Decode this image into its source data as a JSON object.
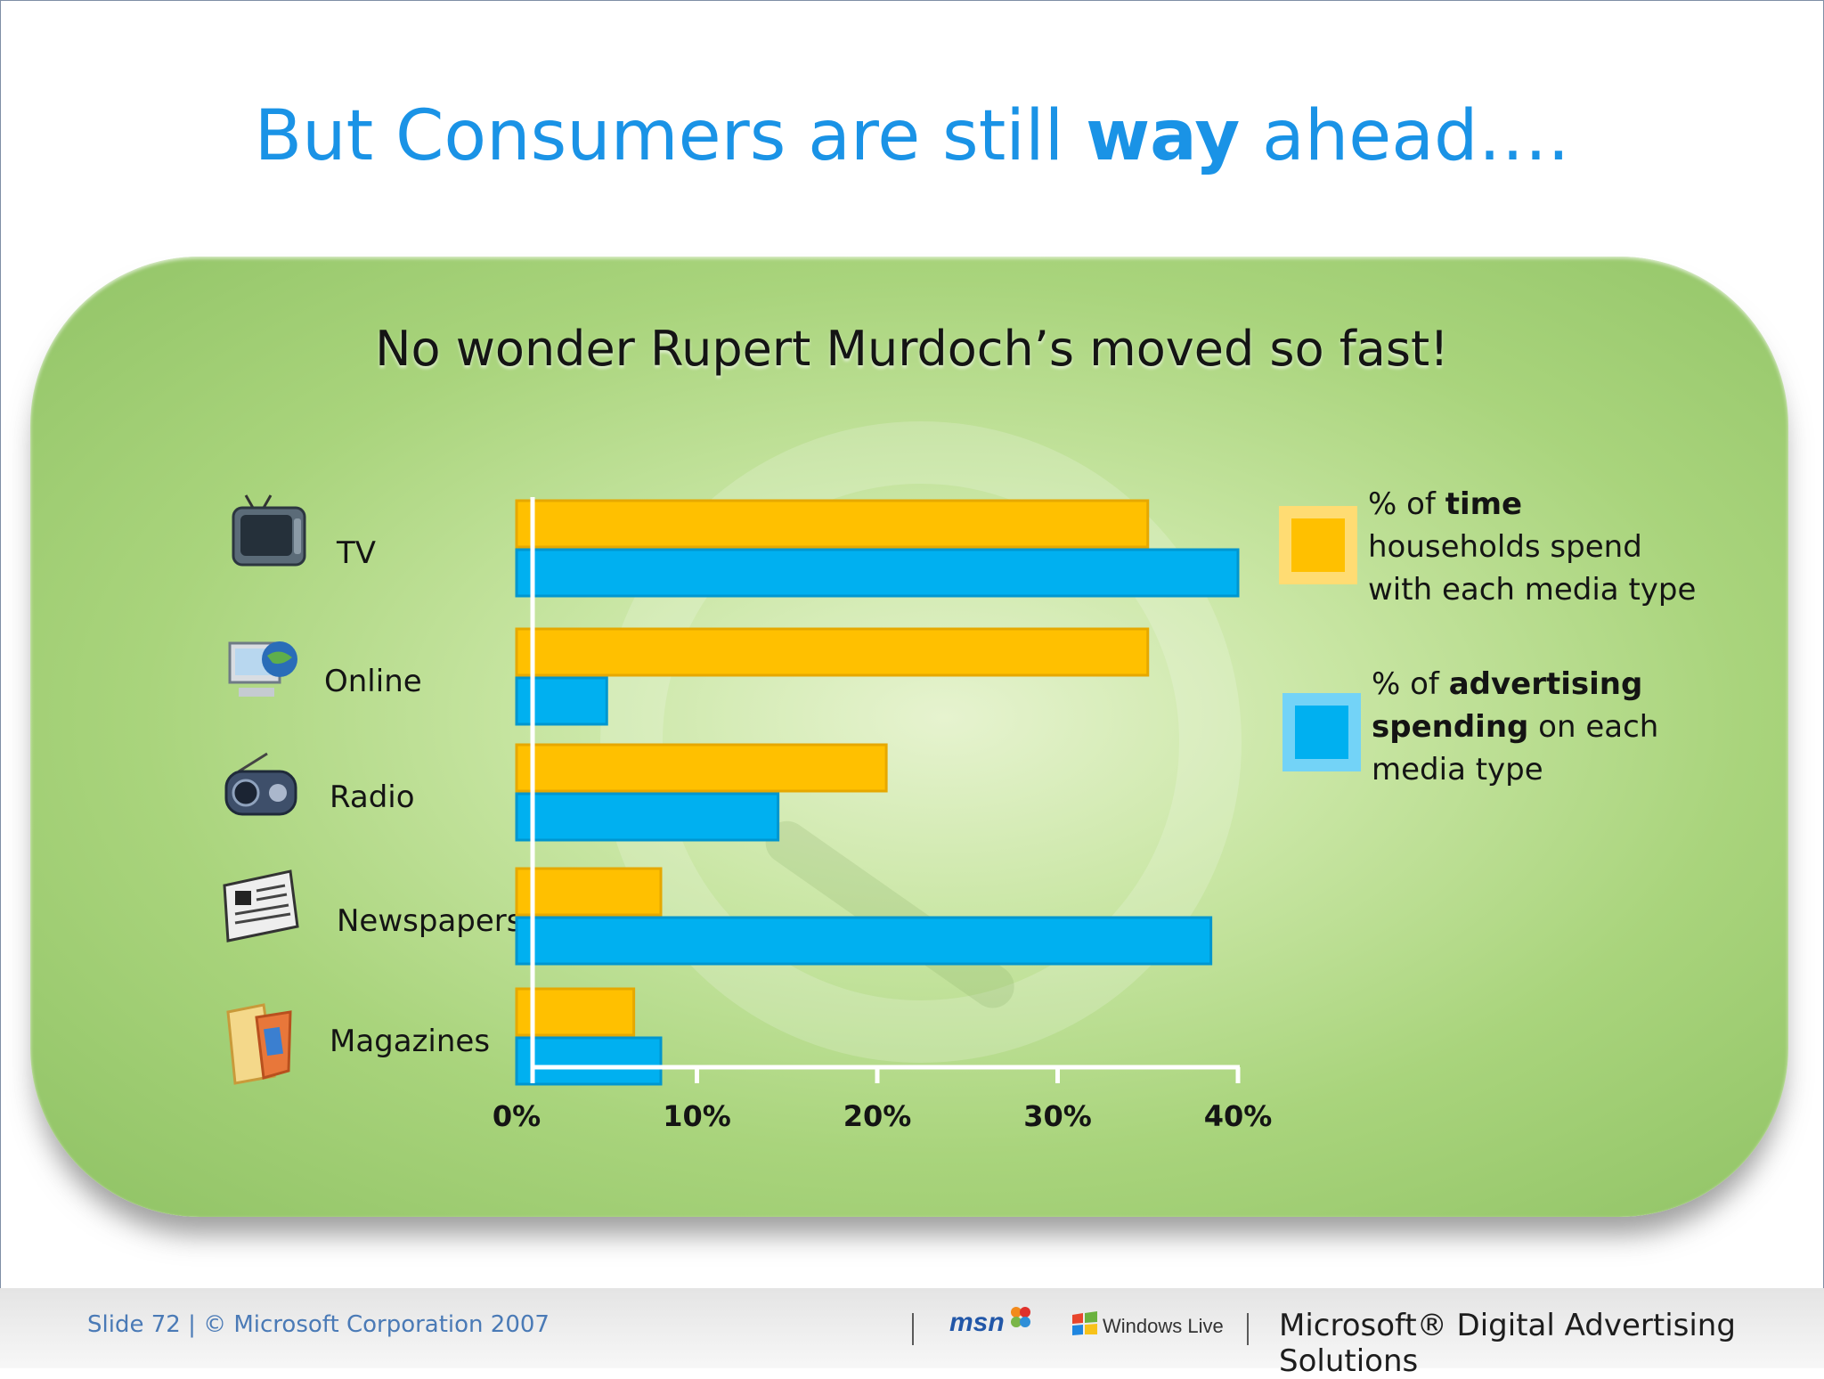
{
  "slide": {
    "title_pre": "But Consumers are still ",
    "title_bold": "way",
    "title_post": " ahead….",
    "footer_text": "Slide 72 | © Microsoft Corporation 2007",
    "msn_logo": "msn",
    "windows_live_logo": "Windows Live",
    "brand": "Microsoft® Digital Advertising Solutions"
  },
  "legend": {
    "time": {
      "pre": "% of ",
      "bold": "time",
      "line2": "households spend",
      "line3": "with each media type"
    },
    "ad": {
      "pre": "% of ",
      "bold1": "advertising",
      "bold2": "spending",
      "post": " on each",
      "line3": "media type"
    }
  },
  "colors": {
    "time": "#ffc000",
    "ad": "#00b0f0",
    "panel": "#a9d47c",
    "title": "#1a93e6"
  },
  "chart_data": {
    "type": "bar",
    "orientation": "horizontal",
    "title": "No wonder Rupert Murdoch’s moved so fast!",
    "categories": [
      "TV",
      "Online",
      "Radio",
      "Newspapers",
      "Magazines"
    ],
    "icons": [
      "tv-icon",
      "computer-icon",
      "radio-icon",
      "newspaper-icon",
      "magazine-icon"
    ],
    "series": [
      {
        "name": "% of time households spend with each media type",
        "values": [
          35,
          35,
          20.5,
          8,
          6.5
        ]
      },
      {
        "name": "% of advertising spending on each media type",
        "values": [
          40,
          5,
          14.5,
          38.5,
          8
        ]
      }
    ],
    "xlim": [
      0,
      40
    ],
    "ticks": [
      "0%",
      "10%",
      "20%",
      "30%",
      "40%"
    ],
    "legend_position": "right"
  }
}
